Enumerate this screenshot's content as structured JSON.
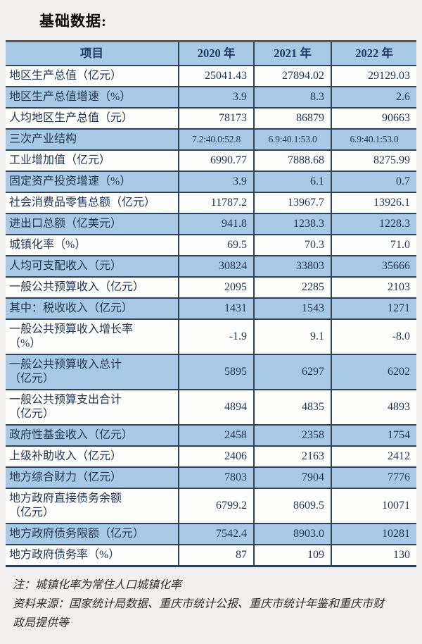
{
  "page": {
    "title": "基础数据:"
  },
  "table": {
    "columns": [
      "项目",
      "2020 年",
      "2021 年",
      "2022 年"
    ],
    "rows": [
      {
        "label": "地区生产总值（亿元）",
        "values": [
          "25041.43",
          "27894.02",
          "29129.03"
        ],
        "shaded": false
      },
      {
        "label": "地区生产总值增速（%）",
        "values": [
          "3.9",
          "8.3",
          "2.6"
        ],
        "shaded": true
      },
      {
        "label": "人均地区生产总值（元）",
        "values": [
          "78173",
          "86879",
          "90663"
        ],
        "shaded": false
      },
      {
        "label": "三次产业结构",
        "values": [
          "7.2:40.0:52.8",
          "6.9:40.1:53.0",
          "6.9:40.1:53.0"
        ],
        "shaded": true
      },
      {
        "label": "工业增加值（亿元）",
        "values": [
          "6990.77",
          "7888.68",
          "8275.99"
        ],
        "shaded": false
      },
      {
        "label": "固定资产投资增速（%）",
        "values": [
          "3.9",
          "6.1",
          "0.7"
        ],
        "shaded": true
      },
      {
        "label": "社会消费品零售总额（亿元）",
        "values": [
          "11787.2",
          "13967.7",
          "13926.1"
        ],
        "shaded": false
      },
      {
        "label": "进出口总额（亿美元）",
        "values": [
          "941.8",
          "1238.3",
          "1228.3"
        ],
        "shaded": true
      },
      {
        "label": "城镇化率（%）",
        "values": [
          "69.5",
          "70.3",
          "71.0"
        ],
        "shaded": false
      },
      {
        "label": "人均可支配收入（元）",
        "values": [
          "30824",
          "33803",
          "35666"
        ],
        "shaded": true
      },
      {
        "label": "一般公共预算收入（亿元）",
        "values": [
          "2095",
          "2285",
          "2103"
        ],
        "shaded": false
      },
      {
        "label": "其中：税收收入（亿元）",
        "values": [
          "1431",
          "1543",
          "1271"
        ],
        "shaded": true
      },
      {
        "label": "一般公共预算收入增长率\n（%）",
        "values": [
          "-1.9",
          "9.1",
          "-8.0"
        ],
        "shaded": false
      },
      {
        "label": "一般公共预算收入总计\n（亿元）",
        "values": [
          "5895",
          "6297",
          "6202"
        ],
        "shaded": true
      },
      {
        "label": "一般公共预算支出合计\n（亿元）",
        "values": [
          "4894",
          "4835",
          "4893"
        ],
        "shaded": false
      },
      {
        "label": "政府性基金收入（亿元）",
        "values": [
          "2458",
          "2358",
          "1754"
        ],
        "shaded": true
      },
      {
        "label": "上级补助收入（亿元）",
        "values": [
          "2406",
          "2163",
          "2412"
        ],
        "shaded": false
      },
      {
        "label": "地方综合财力（亿元）",
        "values": [
          "7803",
          "7904",
          "7776"
        ],
        "shaded": true
      },
      {
        "label": "地方政府直接债务余额\n（亿元）",
        "values": [
          "6799.2",
          "8609.5",
          "10071"
        ],
        "shaded": false
      },
      {
        "label": "地方政府债务限额（亿元）",
        "values": [
          "7542.4",
          "8903.0",
          "10281"
        ],
        "shaded": true
      },
      {
        "label": "地方政府债务率（%）",
        "values": [
          "87",
          "109",
          "130"
        ],
        "shaded": false
      }
    ]
  },
  "notes": [
    "注：城镇化率为常住人口城镇化率",
    "资料来源：国家统计局数据、重庆市统计公报、重庆市统计年鉴和重庆市财政局提供等"
  ],
  "colors": {
    "band_blue": "#a7c9e6",
    "border": "#2d4257",
    "text": "#1e3450",
    "page_background": "#f2f0ee"
  }
}
